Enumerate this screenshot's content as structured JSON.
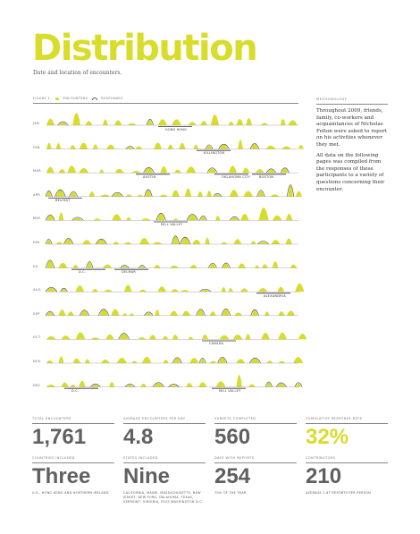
{
  "header": {
    "title": "Distribution",
    "subtitle": "Date and location of encounters."
  },
  "legend": {
    "figure": "FIGURE 1.",
    "encounters": "ENCOUNTERS",
    "responses": "RESPONSES"
  },
  "methodology": {
    "heading": "METHODOLOGY",
    "paragraphs": [
      "Throughout 2009, friends, family, co-workers and acquaintances of Nicholas Felton were asked to report on his activities whenever they met.",
      "All data on the following pages was compiled from the responses of these participants to a variety of questions concerning their encounter."
    ]
  },
  "accent_color": "#d8dc2a",
  "months": [
    {
      "label": "JAN",
      "places": [
        "HONG KONG"
      ]
    },
    {
      "label": "FEB",
      "places": [
        "KILLINGTON"
      ]
    },
    {
      "label": "MAR",
      "places": [
        "AUSTIN",
        "OKLAHOMA CITY",
        "BOSTON"
      ]
    },
    {
      "label": "APR",
      "places": [
        "BELFAST"
      ]
    },
    {
      "label": "MAY",
      "places": [
        "MILL VALLEY"
      ]
    },
    {
      "label": "JUN",
      "places": []
    },
    {
      "label": "JUL",
      "places": [
        "D.C.",
        "DELMAR"
      ]
    },
    {
      "label": "AUG",
      "places": [
        "ALEXANDRIA"
      ]
    },
    {
      "label": "SEP",
      "places": []
    },
    {
      "label": "OCT",
      "places": [
        "CANADA"
      ]
    },
    {
      "label": "NOV",
      "places": []
    },
    {
      "label": "DEC",
      "places": [
        "D.C.",
        "MILL VALLEY"
      ]
    }
  ],
  "stats": [
    {
      "heading": "TOTAL ENCOUNTERS",
      "value": "1,761",
      "note": ""
    },
    {
      "heading": "AVERAGE ENCOUNTERS PER DAY",
      "value": "4.8",
      "note": ""
    },
    {
      "heading": "SURVEYS COMPLETED",
      "value": "560",
      "note": ""
    },
    {
      "heading": "CUMULATIVE RESPONSE RATE",
      "value": "32%",
      "note": "",
      "accent": true
    },
    {
      "heading": "COUNTRIES INCLUDED",
      "value": "Three",
      "note": "U.S., HONG KONG AND NORTHERN IRELAND"
    },
    {
      "heading": "STATES INCLUDED",
      "value": "Nine",
      "note": "CALIFORNIA, MAINE, MASSACHUSETTS, NEW JERSEY, NEW YORK, OKLAHOMA, TEXAS, VERMONT, VIRGINIA, PLUS WASHINGTON D.C."
    },
    {
      "heading": "DAYS WITH REPORTS",
      "value": "254",
      "note": "70% OF THE YEAR"
    },
    {
      "heading": "CONTRIBUTORS",
      "value": "210",
      "note": "AVERAGE 2.67 REPORTS PER PERSON"
    }
  ]
}
